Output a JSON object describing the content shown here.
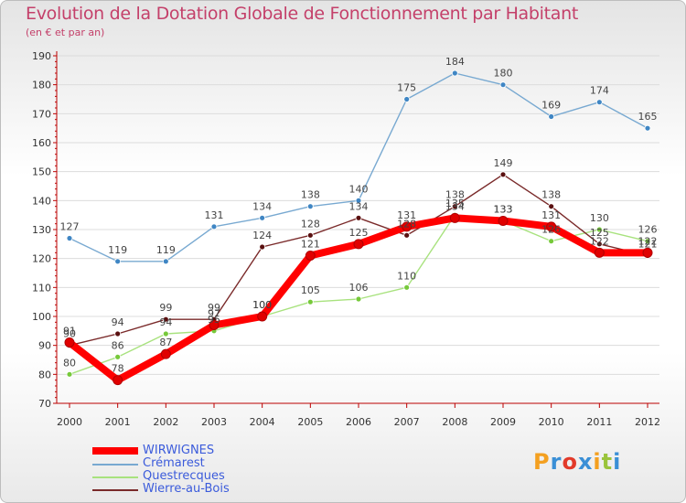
{
  "title": "Evolution de la Dotation Globale de Fonctionnement par Habitant",
  "subtitle": "(en € et par an)",
  "logo": {
    "text": "Proxiti",
    "letters": [
      "P",
      "r",
      "o",
      "x",
      "i",
      "t",
      "i"
    ],
    "colors": [
      "#f4a020",
      "#3a8fd6",
      "#e23a2a",
      "#3a8fd6",
      "#f4a020",
      "#9ac43c",
      "#3a8fd6"
    ]
  },
  "chart_data": {
    "type": "line",
    "x": [
      "2000",
      "2001",
      "2002",
      "2003",
      "2004",
      "2005",
      "2006",
      "2007",
      "2008",
      "2009",
      "2010",
      "2011",
      "2012"
    ],
    "ylim": [
      70,
      190
    ],
    "yticks": [
      70,
      80,
      90,
      100,
      110,
      120,
      130,
      140,
      150,
      160,
      170,
      180,
      190
    ],
    "grid": "horizontal",
    "legend_position": "bottom-left",
    "series": [
      {
        "name": "Crémarest",
        "color": "#78a9d1",
        "dot": "#3f86c4",
        "values": [
          127,
          119,
          119,
          131,
          134,
          138,
          140,
          175,
          184,
          180,
          169,
          174,
          165
        ],
        "labels": [
          "127",
          "119",
          "119",
          "131",
          "134",
          "138",
          "140",
          "175",
          "184",
          "180",
          "169",
          "174",
          "165"
        ]
      },
      {
        "name": "Questrecques",
        "color": "#a8e27e",
        "dot": "#76c93a",
        "values": [
          80,
          86,
          94,
          95,
          100,
          105,
          106,
          110,
          135,
          133,
          126,
          130,
          126
        ],
        "labels": [
          "80",
          "86",
          "94",
          "95",
          "100",
          "105",
          "106",
          "110",
          "135",
          "133",
          "126",
          "130",
          "126"
        ]
      },
      {
        "name": "Wierre-au-Bois",
        "color": "#7a2a2a",
        "dot": "#5a1010",
        "values": [
          90,
          94,
          99,
          99,
          124,
          128,
          134,
          128,
          138,
          149,
          138,
          125,
          121
        ],
        "labels": [
          "90",
          "94",
          "99",
          "99",
          "124",
          "128",
          "134",
          "128",
          "138",
          "149",
          "138",
          "125",
          "121"
        ]
      },
      {
        "name": "WIRWIGNES",
        "color": "#ff0000",
        "dot": "#e00000",
        "values": [
          91,
          78,
          87,
          97,
          100,
          121,
          125,
          131,
          134,
          133,
          131,
          122,
          122
        ],
        "labels": [
          "91",
          "78",
          "87",
          "97",
          "100",
          "121",
          "125",
          "131",
          "134",
          "133",
          "131",
          "122",
          "122"
        ]
      }
    ],
    "legend": [
      "WIRWIGNES",
      "Crémarest",
      "Questrecques",
      "Wierre-au-Bois"
    ]
  }
}
